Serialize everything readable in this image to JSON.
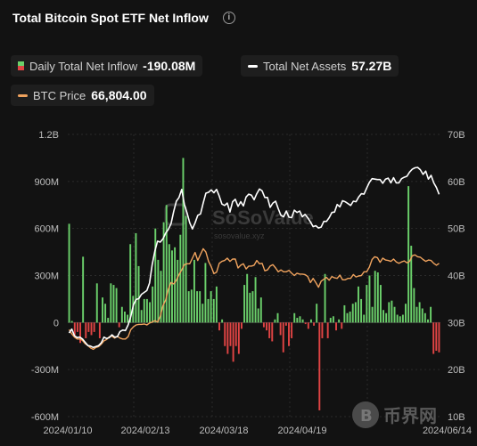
{
  "header": {
    "title": "Total Bitcoin Spot ETF Net Inflow",
    "info_icon": "info-icon"
  },
  "legend": {
    "inflow": {
      "label": "Daily Total Net Inflow",
      "value": "-190.08M",
      "color_pos": "#6bd06b",
      "color_neg": "#e04444"
    },
    "assets": {
      "label": "Total Net Assets",
      "value": "57.27B",
      "color": "#ffffff"
    },
    "btc": {
      "label": "BTC Price",
      "value": "66,804.00",
      "color": "#f0a35e"
    }
  },
  "watermark": {
    "brand": "SoSoValue",
    "url": "sosovalue.xyz",
    "corner_brand": "币界网"
  },
  "chart_data": {
    "type": "bar",
    "x_tick_labels": [
      "2024/01/10",
      "2024/02/13",
      "2024/03/18",
      "2024/04/19",
      "2024/06/14"
    ],
    "left_axis": {
      "ticks": [
        "1.2B",
        "900M",
        "600M",
        "300M",
        "0",
        "-300M",
        "-600M"
      ],
      "ylim": [
        -600,
        1200
      ],
      "unit": "M"
    },
    "right_axis": {
      "ticks": [
        "70B",
        "60B",
        "50B",
        "40B",
        "30B",
        "20B",
        "10B"
      ],
      "ylim": [
        10,
        70
      ],
      "unit": "B"
    },
    "grid": true,
    "series": [
      {
        "name": "Daily Total Net Inflow",
        "type": "bar",
        "axis": "left",
        "values": [
          630,
          10,
          -80,
          -60,
          -130,
          420,
          -100,
          -60,
          -80,
          -60,
          250,
          -100,
          160,
          120,
          30,
          250,
          240,
          220,
          -30,
          100,
          70,
          50,
          500,
          170,
          570,
          360,
          80,
          150,
          150,
          130,
          230,
          600,
          400,
          330,
          640,
          750,
          500,
          460,
          480,
          400,
          560,
          1050,
          680,
          200,
          210,
          400,
          200,
          200,
          120,
          380,
          150,
          200,
          150,
          230,
          -50,
          20,
          -150,
          -200,
          -150,
          -250,
          -150,
          -200,
          -40,
          240,
          310,
          190,
          200,
          290,
          90,
          160,
          -30,
          -50,
          -100,
          -120,
          20,
          60,
          -80,
          -190,
          -20,
          -150,
          -100,
          60,
          30,
          40,
          20,
          -10,
          -40,
          20,
          -20,
          120,
          -560,
          -100,
          310,
          -100,
          30,
          40,
          -50,
          20,
          -40,
          110,
          60,
          70,
          120,
          130,
          230,
          150,
          50,
          240,
          300,
          100,
          330,
          320,
          240,
          80,
          60,
          130,
          140,
          100,
          50,
          40,
          50,
          120,
          870,
          490,
          220,
          100,
          130,
          90,
          60,
          20,
          100,
          -200,
          -180,
          -190
        ]
      },
      {
        "name": "Total Net Assets",
        "type": "line",
        "axis": "right",
        "values": [
          27.8,
          28.6,
          27.2,
          26.8,
          26.9,
          26.5,
          25.8,
          25.1,
          25.0,
          24.7,
          24.9,
          25.1,
          25.7,
          26.9,
          26.6,
          26.8,
          27.4,
          26.9,
          27.0,
          28.1,
          28.4,
          28.3,
          29.5,
          31.3,
          33.8,
          34.9,
          35.1,
          36.0,
          36.4,
          36.8,
          38.4,
          42.3,
          45.2,
          47.3,
          47.1,
          47.8,
          49.0,
          49.8,
          51.0,
          53.6,
          55.8,
          56.6,
          58.3,
          55.1,
          53.3,
          51.2,
          49.9,
          51.2,
          52.8,
          53.1,
          55.4,
          57.5,
          57.7,
          58.2,
          57.6,
          58.3,
          56.9,
          55.2,
          54.9,
          55.4,
          53.5,
          55.7,
          56.2,
          54.7,
          55.7,
          54.8,
          56.7,
          57.3,
          57.1,
          56.1,
          57.4,
          58.4,
          58.0,
          56.6,
          56.6,
          54.5,
          55.4,
          55.8,
          54.2,
          52.8,
          52.5,
          53.7,
          52.4,
          52.3,
          53.9,
          53.4,
          53.7,
          52.5,
          53.0,
          52.3,
          51.4,
          50.4,
          50.6,
          50.1,
          50.3,
          51.5,
          51.5,
          52.3,
          53.4,
          53.5,
          55.1,
          54.6,
          55.9,
          55.7,
          55.3,
          54.9,
          55.8,
          55.7,
          56.7,
          57.4,
          57.3,
          58.6,
          59.8,
          60.6,
          60.5,
          60.4,
          60.4,
          59.6,
          60.5,
          60.7,
          59.7,
          60.8,
          59.7,
          59.7,
          60.6,
          60.9,
          61.1,
          62.0,
          62.6,
          62.9,
          63.0,
          62.5,
          61.5,
          62.2,
          60.5,
          61.3,
          59.7,
          58.7,
          57.27
        ]
      },
      {
        "name": "BTC Price",
        "type": "line",
        "axis": "right",
        "values": [
          28.5,
          27.6,
          26.9,
          26.5,
          26.5,
          26.2,
          25.5,
          25.1,
          24.6,
          24.3,
          24.7,
          24.9,
          25.4,
          26.1,
          26.4,
          27.0,
          27.1,
          26.7,
          27.1,
          26.7,
          26.5,
          26.5,
          27.0,
          28.5,
          29.1,
          29.5,
          29.6,
          29.6,
          29.7,
          29.5,
          29.9,
          30.1,
          30.4,
          30.1,
          31.3,
          33.6,
          34.8,
          37.1,
          38.5,
          38.2,
          39.0,
          40.2,
          41.2,
          42.3,
          42.5,
          42.5,
          43.7,
          44.9,
          43.2,
          44.5,
          45.7,
          45.0,
          43.0,
          41.9,
          40.4,
          40.7,
          42.6,
          43.0,
          43.2,
          43.7,
          43.0,
          43.5,
          43.5,
          41.6,
          42.2,
          42.5,
          41.4,
          42.0,
          42.0,
          42.2,
          43.2,
          42.5,
          42.6,
          41.0,
          41.2,
          42.0,
          42.3,
          41.6,
          40.8,
          41.2,
          40.8,
          40.8,
          41.1,
          40.5,
          40.0,
          40.5,
          40.3,
          40.3,
          40.2,
          39.8,
          38.5,
          39.4,
          38.5,
          37.5,
          38.8,
          39.2,
          39.6,
          39.0,
          39.8,
          39.5,
          39.4,
          40.1,
          39.1,
          39.1,
          39.4,
          39.4,
          40.2,
          39.7,
          39.9,
          40.0,
          40.8,
          40.8,
          41.8,
          43.4,
          44.0,
          43.8,
          42.8,
          43.7,
          43.3,
          43.2,
          43.0,
          43.5,
          42.9,
          42.6,
          42.9,
          43.1,
          42.7,
          43.0,
          44.2,
          44.4,
          44.0,
          43.9,
          43.4,
          43.0,
          43.3,
          43.2,
          42.6,
          42.2,
          42.6
        ]
      }
    ]
  }
}
